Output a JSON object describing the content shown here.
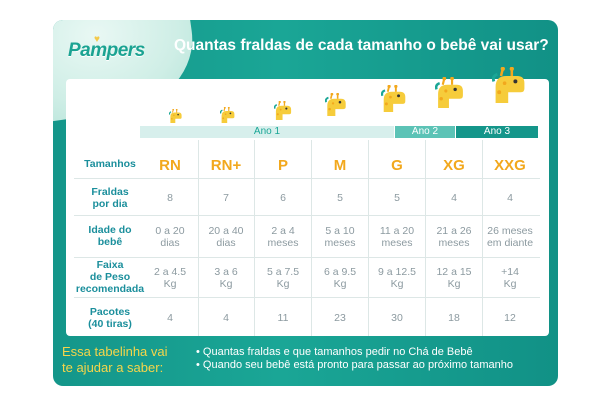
{
  "brand": {
    "logo_text": "Pampers"
  },
  "title": "Quantas fraldas de cada tamanho o bebê vai usar?",
  "age_bars": [
    "Ano 1",
    "Ano 2",
    "Ano 3"
  ],
  "row_labels": {
    "sizes": "Tamanhos",
    "per_day": [
      "Fraldas",
      "por dia"
    ],
    "age": [
      "Idade do",
      "bebê"
    ],
    "weight": [
      "Faixa",
      "de Peso",
      "recomendada"
    ],
    "packs": [
      "Pacotes",
      "(40 tiras)"
    ]
  },
  "sizes": [
    "RN",
    "RN+",
    "P",
    "M",
    "G",
    "XG",
    "XXG"
  ],
  "per_day": [
    "8",
    "7",
    "6",
    "5",
    "5",
    "4",
    "4"
  ],
  "age": [
    [
      "0 a 20",
      "dias"
    ],
    [
      "20 a 40",
      "dias"
    ],
    [
      "2 a 4",
      "meses"
    ],
    [
      "5 a 10",
      "meses"
    ],
    [
      "11 a 20",
      "meses"
    ],
    [
      "21 a 26",
      "meses"
    ],
    [
      "26 meses",
      "em diante"
    ]
  ],
  "weight": [
    [
      "2 a 4.5",
      "Kg"
    ],
    [
      "3 a 6",
      "Kg"
    ],
    [
      "5 a 7.5",
      "Kg"
    ],
    [
      "6 a 9.5",
      "Kg"
    ],
    [
      "9 a 12.5",
      "Kg"
    ],
    [
      "12 a 15",
      "Kg"
    ],
    [
      "+14",
      "Kg"
    ]
  ],
  "packs": [
    "4",
    "4",
    "11",
    "23",
    "30",
    "18",
    "12"
  ],
  "footer": {
    "lead": [
      "Essa tabelinha vai",
      "te ajudar a saber:"
    ],
    "items": [
      "Quantas fraldas e que tamanhos pedir no Chá de Bebê",
      "Quando seu bebê está pronto para passar ao próximo tamanho"
    ]
  },
  "colors": {
    "teal": "#1aa696",
    "orange": "#f2a81d",
    "yellow": "#f6d54a",
    "text_gray": "#8c9aa0"
  },
  "icons": [
    "giraffe-icon"
  ]
}
